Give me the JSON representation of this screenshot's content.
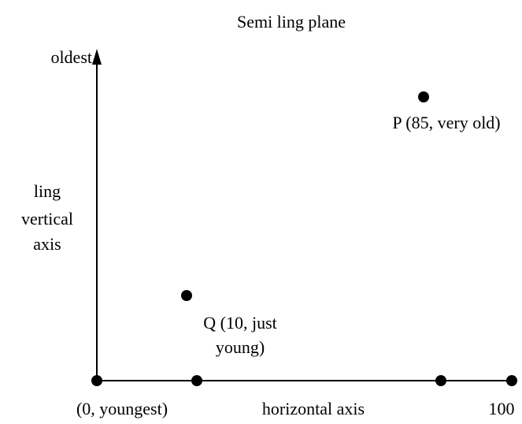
{
  "title": "Semi ling plane",
  "vertical_axis": {
    "top_label": "oldest",
    "label_lines": [
      "ling",
      "vertical",
      "axis"
    ]
  },
  "horizontal_axis": {
    "origin_label": "(0, youngest)",
    "label": "horizontal axis",
    "end_label": "100"
  },
  "points": [
    {
      "label_lines": [
        "P (85, very old)"
      ]
    },
    {
      "label_lines": [
        "Q (10, just",
        "young)"
      ]
    }
  ]
}
